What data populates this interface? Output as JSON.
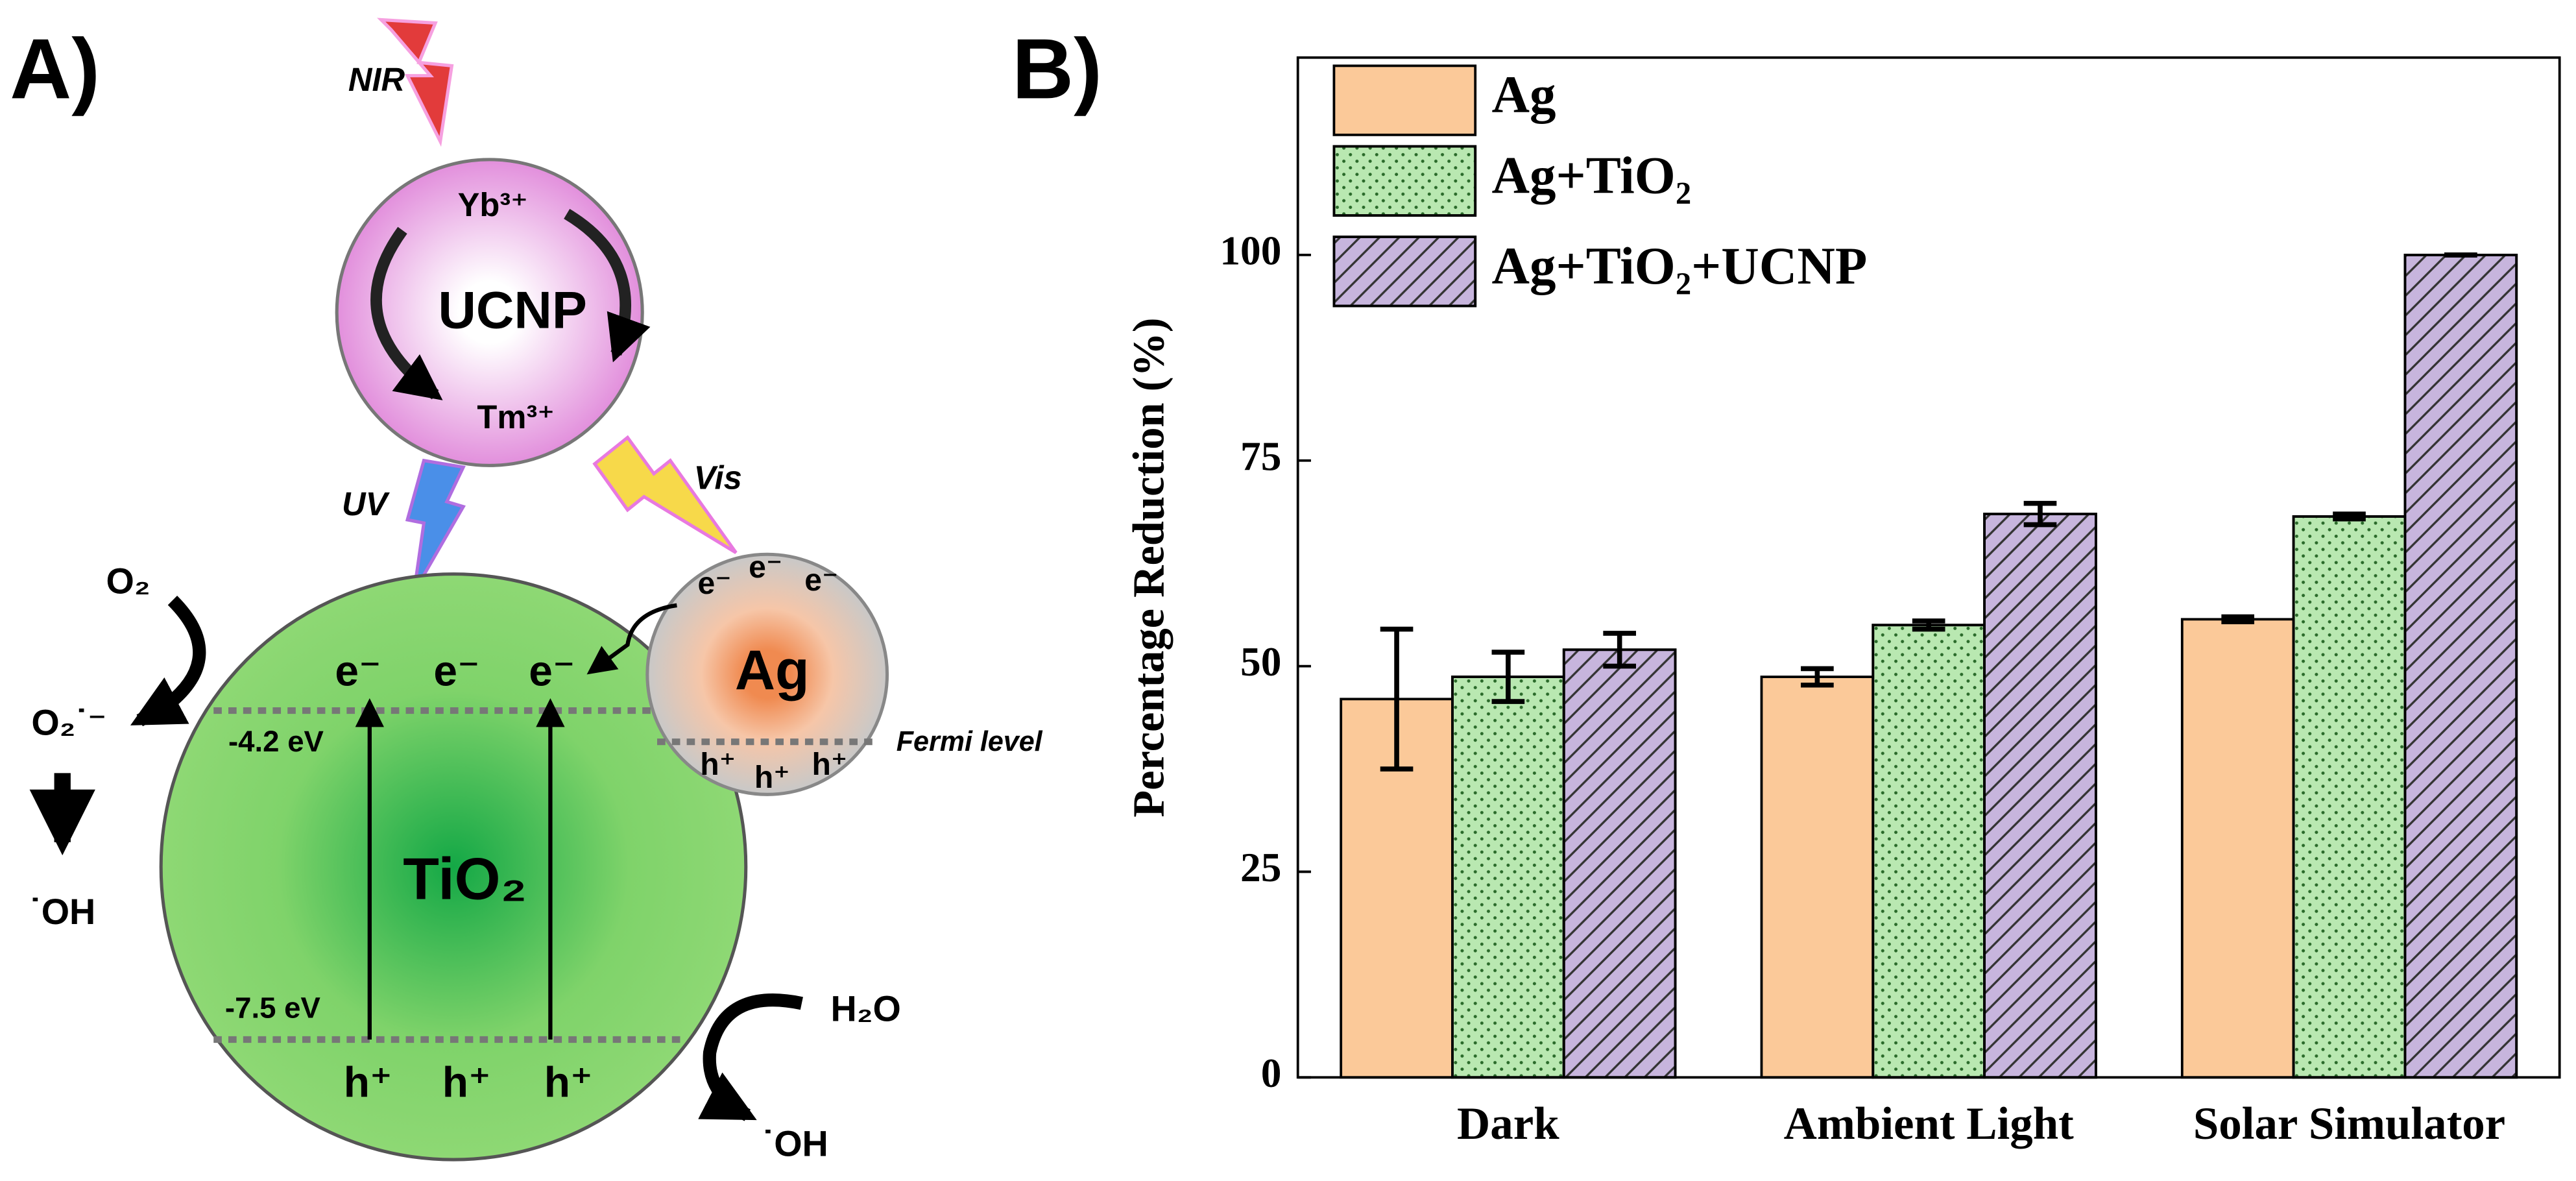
{
  "panel_labels": [
    "A)",
    "B)"
  ],
  "diagram": {
    "nir": "NIR",
    "uv": "UV",
    "vis": "Vis",
    "ucnp": {
      "label": "UCNP",
      "yb": "Yb³⁺",
      "tm": "Tm³⁺"
    },
    "tio2": {
      "label": "TiO₂",
      "cb": "-4.2 eV",
      "vb": "-7.5 eV",
      "electrons": [
        "e⁻",
        "e⁻",
        "e⁻"
      ],
      "holes": [
        "h⁺",
        "h⁺",
        "h⁺"
      ]
    },
    "ag": {
      "label": "Ag",
      "fermi": "Fermi level",
      "electrons": [
        "e⁻",
        "e⁻",
        "e⁻"
      ],
      "holes": [
        "h⁺",
        "h⁺",
        "h⁺"
      ]
    },
    "o2": "O₂",
    "superoxide": "O₂˙⁻",
    "oh_left": "˙OH",
    "h2o": "H₂O",
    "oh_right": "˙OH"
  },
  "chart_data": {
    "type": "bar",
    "ylabel": "Percentage Reduction (%)",
    "categories": [
      "Dark",
      "Ambient Light",
      "Solar Simulator"
    ],
    "series": [
      {
        "name": "Ag",
        "color": "#fbc999",
        "pattern": "none",
        "values": [
          46,
          48.7,
          55.7
        ],
        "errors": [
          8.5,
          1,
          0.3
        ]
      },
      {
        "name": "Ag+TiO₂",
        "color": "#b9e8b1",
        "pattern": "dots",
        "values": [
          48.7,
          55,
          68.2
        ],
        "errors": [
          3,
          0.5,
          0.3
        ]
      },
      {
        "name": "Ag+TiO₂+UCNP",
        "color": "#c7b5dd",
        "pattern": "hatch",
        "values": [
          52,
          68.5,
          100
        ],
        "errors": [
          2,
          1.3,
          0
        ]
      }
    ],
    "ylim": [
      0,
      124
    ],
    "yticks": [
      0,
      25,
      50,
      75,
      100
    ],
    "legend": "upper left"
  }
}
